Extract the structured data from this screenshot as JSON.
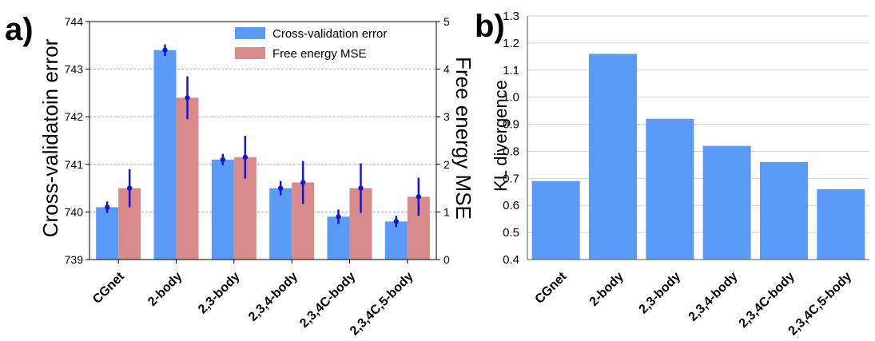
{
  "chart_data": [
    {
      "panel": "a)",
      "type": "bar",
      "categories": [
        "CGnet",
        "2-body",
        "2,3-body",
        "2,3,4-body",
        "2,3,4C-body",
        "2,3,4C,5-body"
      ],
      "ylabel": "Cross-validatoin error",
      "y2label": "Free energy MSE",
      "ylim": [
        739,
        744
      ],
      "y2lim": [
        0,
        5
      ],
      "yticks": [
        "739",
        "740",
        "741",
        "742",
        "743",
        "744"
      ],
      "y2ticks": [
        "0",
        "1",
        "2",
        "3",
        "4",
        "5"
      ],
      "grid": "horizontal dashed",
      "legend": "top-right",
      "colors": {
        "cv": "#5b9bf8",
        "fe": "#d98a8a",
        "error": "#1414d6"
      },
      "series": [
        {
          "name": "Cross-validation error",
          "axis": "left",
          "values": [
            740.1,
            743.4,
            741.1,
            740.5,
            739.9,
            739.8
          ],
          "errors": [
            0.12,
            0.12,
            0.12,
            0.15,
            0.15,
            0.12
          ]
        },
        {
          "name": "Free energy MSE",
          "axis": "right",
          "values": [
            1.5,
            3.4,
            2.15,
            1.62,
            1.5,
            1.32
          ],
          "errors": [
            0.4,
            0.45,
            0.45,
            0.45,
            0.52,
            0.4
          ]
        }
      ]
    },
    {
      "panel": "b)",
      "type": "bar",
      "categories": [
        "CGnet",
        "2-body",
        "2,3-body",
        "2,3,4-body",
        "2,3,4C-body",
        "2,3,4C,5-body"
      ],
      "ylabel": "KL divergence",
      "ylim": [
        0.4,
        1.3
      ],
      "yticks": [
        "0.4",
        "0.5",
        "0.6",
        "0.7",
        "0.8",
        "0.9",
        "1.0",
        "1.1",
        "1.2",
        "1.3"
      ],
      "grid": "horizontal",
      "color": "#5b9bf8",
      "values": [
        0.69,
        1.16,
        0.92,
        0.82,
        0.76,
        0.66
      ]
    }
  ]
}
